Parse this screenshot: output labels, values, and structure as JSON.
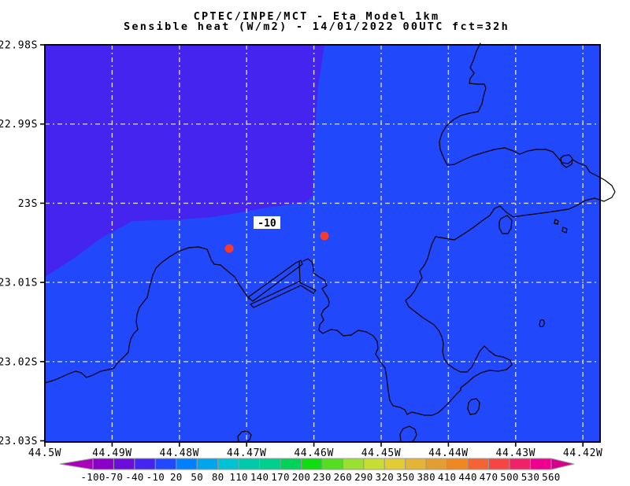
{
  "title": {
    "line1": "CPTEC/INPE/MCT -  Eta Model 1km",
    "line2": "Sensible heat (W/m2) - 14/01/2022 00UTC fct=32h"
  },
  "map": {
    "x_tick_labels": [
      "44.5W",
      "44.49W",
      "44.48W",
      "44.47W",
      "44.46W",
      "44.45W",
      "44.44W",
      "44.43W",
      "44.42W"
    ],
    "y_tick_labels": [
      "22.98S",
      "22.99S",
      "23S",
      "23.01S",
      "23.02S",
      "23.03S"
    ],
    "contour_label": "-10"
  },
  "colors": {
    "title": "#8b1a1a",
    "sea": "#2148fb",
    "anomaly_region": "#4424ee",
    "coastline": "#000000",
    "gridline": "#e2e2e2",
    "station_dot": "#f43b2c",
    "frame": "#000000",
    "contour_label_bg": "#ffffff",
    "contour_label_text": "#000000"
  },
  "colorbar": {
    "labels": [
      "-100",
      "-70",
      "-40",
      "-10",
      "20",
      "50",
      "80",
      "110",
      "140",
      "170",
      "200",
      "230",
      "260",
      "290",
      "320",
      "350",
      "380",
      "410",
      "440",
      "470",
      "500",
      "530",
      "560"
    ],
    "segment_colors": [
      "#8a00c8",
      "#6b0edc",
      "#4424ee",
      "#2148fb",
      "#0080fa",
      "#00a5ec",
      "#00c2d2",
      "#00caaa",
      "#00cf8e",
      "#00d258",
      "#11dc11",
      "#55dd22",
      "#99e033",
      "#c8dd33",
      "#e2cc35",
      "#e2b535",
      "#e29e35",
      "#ee8822",
      "#f26434",
      "#f54545",
      "#ee2268",
      "#ee0090"
    ],
    "left_arrow_color": "#aa00bb",
    "right_arrow_color": "#d6008e"
  },
  "chart_data": {
    "type": "heatmap",
    "title": "CPTEC/INPE/MCT -  Eta Model 1km",
    "subtitle": "Sensible heat (W/m2) - 14/01/2022 00UTC fct=32h",
    "variable": "Sensible heat",
    "units": "W/m2",
    "model": "Eta Model 1km",
    "init_time": "14/01/2022 00UTC",
    "forecast_hour": "fct=32h",
    "x_ticks": [
      "44.5W",
      "44.49W",
      "44.48W",
      "44.47W",
      "44.46W",
      "44.45W",
      "44.44W",
      "44.43W",
      "44.42W"
    ],
    "y_ticks": [
      "22.98S",
      "22.99S",
      "23S",
      "23.01S",
      "23.02S",
      "23.03S"
    ],
    "x_range_deg_west": [
      44.5,
      44.42
    ],
    "y_range_deg_south": [
      22.98,
      23.03
    ],
    "grid": true,
    "colorbar_levels": [
      -100,
      -70,
      -40,
      -10,
      20,
      50,
      80,
      110,
      140,
      170,
      200,
      230,
      260,
      290,
      320,
      350,
      380,
      410,
      440,
      470,
      500,
      530,
      560
    ],
    "colorbar_position": "bottom",
    "shaded_regions": [
      {
        "value_range": "-40 to -10",
        "color": "#4424ee",
        "location": "northwest corner of domain (offshore), down to about 23.01S at the west edge and east to about 44.46W at the top"
      },
      {
        "value_range": "-10 to 20",
        "color": "#2148fb",
        "location": "remainder of domain, including all land areas"
      }
    ],
    "contour_labels": [
      {
        "value": -10,
        "approx_lon_west": 44.467,
        "approx_lat_south": 23.002
      }
    ],
    "markers": [
      {
        "shape": "red-dot",
        "approx_lon_west": 44.473,
        "approx_lat_south": 23.006
      },
      {
        "shape": "red-dot",
        "approx_lon_west": 44.458,
        "approx_lat_south": 23.004
      }
    ]
  }
}
